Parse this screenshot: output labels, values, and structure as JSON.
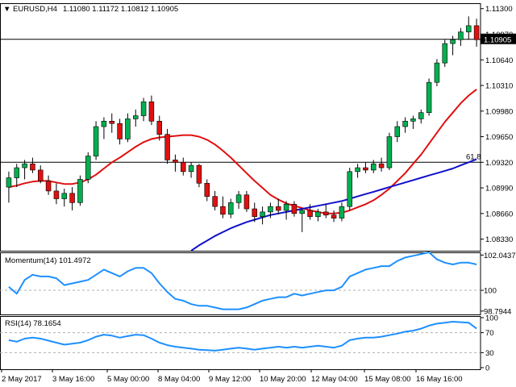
{
  "header": {
    "title": "EURUSD,H4",
    "ohlc": "1.11080 1.11172 1.10812 1.10905"
  },
  "colors": {
    "bull": "#00b050",
    "bear": "#e01010",
    "sma_fast": "#e01010",
    "sma_slow": "#1010cc",
    "momentum": "#1e90ff",
    "rsi": "#1e90ff",
    "grid": "#b0b0b0"
  },
  "chart_data": [
    {
      "type": "candlestick",
      "title": "EURUSD,H4",
      "y_ticks": [
        "1.11300",
        "1.10970",
        "1.10640",
        "1.10310",
        "1.09980",
        "1.09650",
        "1.09320",
        "1.08990",
        "1.08660",
        "1.08330"
      ],
      "ylim": [
        1.0818,
        1.1137
      ],
      "price_line": {
        "value": 1.10905,
        "label": "1.10905"
      },
      "fib_line": {
        "value": 1.0932,
        "label": "61.8"
      },
      "x_ticks": [
        "2 May 2017",
        "3 May 16:00",
        "5 May 00:00",
        "8 May 04:00",
        "9 May 12:00",
        "10 May 20:00",
        "12 May 04:00",
        "15 May 08:00",
        "16 May 16:00"
      ],
      "candles": [
        {
          "o": 1.09,
          "h": 1.092,
          "l": 1.088,
          "c": 1.0912
        },
        {
          "o": 1.0912,
          "h": 1.093,
          "l": 1.09,
          "c": 1.0925
        },
        {
          "o": 1.0925,
          "h": 1.0935,
          "l": 1.091,
          "c": 1.093
        },
        {
          "o": 1.093,
          "h": 1.0938,
          "l": 1.0918,
          "c": 1.0922
        },
        {
          "o": 1.0922,
          "h": 1.0928,
          "l": 1.0905,
          "c": 1.0908
        },
        {
          "o": 1.0908,
          "h": 1.0915,
          "l": 1.089,
          "c": 1.0895
        },
        {
          "o": 1.0895,
          "h": 1.0905,
          "l": 1.0878,
          "c": 1.0885
        },
        {
          "o": 1.0885,
          "h": 1.0898,
          "l": 1.0875,
          "c": 1.0892
        },
        {
          "o": 1.0892,
          "h": 1.09,
          "l": 1.087,
          "c": 1.088
        },
        {
          "o": 1.088,
          "h": 1.0915,
          "l": 1.0876,
          "c": 1.091
        },
        {
          "o": 1.091,
          "h": 1.0945,
          "l": 1.0905,
          "c": 1.094
        },
        {
          "o": 1.094,
          "h": 1.0985,
          "l": 1.0935,
          "c": 1.0978
        },
        {
          "o": 1.0978,
          "h": 1.099,
          "l": 1.0962,
          "c": 1.0985
        },
        {
          "o": 1.0985,
          "h": 1.0995,
          "l": 1.097,
          "c": 1.0982
        },
        {
          "o": 1.0982,
          "h": 1.0988,
          "l": 1.0955,
          "c": 1.0962
        },
        {
          "o": 1.0962,
          "h": 1.0995,
          "l": 1.0958,
          "c": 1.0988
        },
        {
          "o": 1.0988,
          "h": 1.1,
          "l": 1.0978,
          "c": 1.0992
        },
        {
          "o": 1.0992,
          "h": 1.1015,
          "l": 1.0985,
          "c": 1.101
        },
        {
          "o": 1.101,
          "h": 1.1018,
          "l": 1.098,
          "c": 1.0985
        },
        {
          "o": 1.0985,
          "h": 1.0992,
          "l": 1.096,
          "c": 1.0968
        },
        {
          "o": 1.0968,
          "h": 1.0975,
          "l": 1.093,
          "c": 1.0935
        },
        {
          "o": 1.0935,
          "h": 1.0942,
          "l": 1.092,
          "c": 1.0932
        },
        {
          "o": 1.0932,
          "h": 1.0938,
          "l": 1.0915,
          "c": 1.092
        },
        {
          "o": 1.092,
          "h": 1.0932,
          "l": 1.0912,
          "c": 1.0928
        },
        {
          "o": 1.0928,
          "h": 1.093,
          "l": 1.09,
          "c": 1.0905
        },
        {
          "o": 1.0905,
          "h": 1.091,
          "l": 1.0882,
          "c": 1.0888
        },
        {
          "o": 1.0888,
          "h": 1.0895,
          "l": 1.087,
          "c": 1.0875
        },
        {
          "o": 1.0875,
          "h": 1.0888,
          "l": 1.086,
          "c": 1.0865
        },
        {
          "o": 1.0865,
          "h": 1.0885,
          "l": 1.086,
          "c": 1.088
        },
        {
          "o": 1.088,
          "h": 1.0895,
          "l": 1.0872,
          "c": 1.089
        },
        {
          "o": 1.089,
          "h": 1.0895,
          "l": 1.0868,
          "c": 1.0872
        },
        {
          "o": 1.0872,
          "h": 1.088,
          "l": 1.0855,
          "c": 1.0862
        },
        {
          "o": 1.0862,
          "h": 1.0875,
          "l": 1.0852,
          "c": 1.0868
        },
        {
          "o": 1.0868,
          "h": 1.088,
          "l": 1.086,
          "c": 1.0875
        },
        {
          "o": 1.0875,
          "h": 1.0885,
          "l": 1.0865,
          "c": 1.087
        },
        {
          "o": 1.087,
          "h": 1.0882,
          "l": 1.0858,
          "c": 1.0878
        },
        {
          "o": 1.0878,
          "h": 1.0882,
          "l": 1.0862,
          "c": 1.0866
        },
        {
          "o": 1.0866,
          "h": 1.0872,
          "l": 1.0842,
          "c": 1.087
        },
        {
          "o": 1.087,
          "h": 1.0878,
          "l": 1.0858,
          "c": 1.0862
        },
        {
          "o": 1.0862,
          "h": 1.0872,
          "l": 1.0856,
          "c": 1.0868
        },
        {
          "o": 1.0868,
          "h": 1.0878,
          "l": 1.086,
          "c": 1.0864
        },
        {
          "o": 1.0864,
          "h": 1.087,
          "l": 1.0855,
          "c": 1.086
        },
        {
          "o": 1.086,
          "h": 1.088,
          "l": 1.0856,
          "c": 1.0875
        },
        {
          "o": 1.0875,
          "h": 1.0925,
          "l": 1.087,
          "c": 1.092
        },
        {
          "o": 1.092,
          "h": 1.093,
          "l": 1.0912,
          "c": 1.0925
        },
        {
          "o": 1.0925,
          "h": 1.0932,
          "l": 1.0918,
          "c": 1.0922
        },
        {
          "o": 1.0922,
          "h": 1.0935,
          "l": 1.0918,
          "c": 1.093
        },
        {
          "o": 1.093,
          "h": 1.0938,
          "l": 1.092,
          "c": 1.0925
        },
        {
          "o": 1.0925,
          "h": 1.097,
          "l": 1.0922,
          "c": 1.0965
        },
        {
          "o": 1.0965,
          "h": 1.0985,
          "l": 1.0958,
          "c": 1.0978
        },
        {
          "o": 1.0978,
          "h": 1.099,
          "l": 1.097,
          "c": 1.0985
        },
        {
          "o": 1.0985,
          "h": 1.0992,
          "l": 1.0975,
          "c": 1.0988
        },
        {
          "o": 1.0988,
          "h": 1.1,
          "l": 1.0982,
          "c": 1.0996
        },
        {
          "o": 1.0996,
          "h": 1.104,
          "l": 1.0992,
          "c": 1.1035
        },
        {
          "o": 1.1035,
          "h": 1.1065,
          "l": 1.103,
          "c": 1.106
        },
        {
          "o": 1.106,
          "h": 1.109,
          "l": 1.1055,
          "c": 1.1085
        },
        {
          "o": 1.1085,
          "h": 1.1095,
          "l": 1.107,
          "c": 1.109
        },
        {
          "o": 1.109,
          "h": 1.1105,
          "l": 1.1082,
          "c": 1.11
        },
        {
          "o": 1.11,
          "h": 1.112,
          "l": 1.109,
          "c": 1.1108
        },
        {
          "o": 1.1108,
          "h": 1.1117,
          "l": 1.1081,
          "c": 1.109
        }
      ],
      "sma_fast": [
        1.09,
        1.0902,
        1.0905,
        1.0907,
        1.0908,
        1.0908,
        1.0906,
        1.0904,
        1.0904,
        1.0906,
        1.091,
        1.0916,
        1.0924,
        1.0932,
        1.0938,
        1.0945,
        1.0952,
        1.0958,
        1.0962,
        1.0964,
        1.0965,
        1.0966,
        1.0967,
        1.0967,
        1.0965,
        1.0961,
        1.0955,
        1.0947,
        1.0938,
        1.0928,
        1.0918,
        1.0908,
        1.0899,
        1.089,
        1.0884,
        1.0879,
        1.0876,
        1.0873,
        1.087,
        1.0868,
        1.0866,
        1.0866,
        1.0867,
        1.087,
        1.0874,
        1.0878,
        1.0883,
        1.089,
        1.0898,
        1.0908,
        1.0918,
        1.093,
        1.0942,
        1.0956,
        1.097,
        1.0984,
        1.0996,
        1.1008,
        1.1018,
        1.1026
      ],
      "sma_slow": [
        null,
        null,
        null,
        null,
        null,
        null,
        null,
        null,
        null,
        null,
        null,
        null,
        null,
        null,
        null,
        null,
        null,
        null,
        null,
        null,
        null,
        null,
        null,
        1.0818,
        1.0825,
        1.0831,
        1.0837,
        1.0842,
        1.0847,
        1.0851,
        1.0855,
        1.0858,
        1.0861,
        1.0864,
        1.0866,
        1.0868,
        1.087,
        1.0872,
        1.0874,
        1.0876,
        1.0878,
        1.088,
        1.0882,
        1.0885,
        1.0888,
        1.0891,
        1.0894,
        1.0897,
        1.09,
        1.0903,
        1.0906,
        1.0909,
        1.0912,
        1.0915,
        1.0918,
        1.0921,
        1.0924,
        1.0928,
        1.0932,
        1.0936
      ]
    },
    {
      "type": "line",
      "title": "Momentum(14) 101.4972",
      "y_ticks": [
        "102.0437",
        "100",
        "98.7944"
      ],
      "ylim": [
        98.6,
        102.2
      ],
      "reference": 100,
      "values": [
        100.2,
        99.8,
        100.6,
        100.9,
        100.8,
        100.8,
        100.7,
        100.3,
        100.4,
        100.5,
        100.6,
        100.9,
        101.2,
        101.0,
        100.8,
        101.1,
        101.3,
        101.3,
        101.0,
        100.4,
        99.9,
        99.5,
        99.4,
        99.2,
        99.1,
        99.1,
        99.0,
        98.9,
        98.9,
        98.9,
        99.0,
        99.2,
        99.4,
        99.5,
        99.6,
        99.6,
        99.8,
        99.7,
        99.8,
        99.9,
        100.0,
        100.0,
        100.2,
        100.8,
        101.0,
        101.2,
        101.3,
        101.4,
        101.4,
        101.7,
        101.9,
        102.0,
        102.1,
        102.2,
        101.8,
        101.6,
        101.5,
        101.6,
        101.6,
        101.5
      ]
    },
    {
      "type": "line",
      "title": "RSI(14) 78.1654",
      "y_ticks": [
        "100",
        "70",
        "30",
        "0"
      ],
      "ylim": [
        0,
        100
      ],
      "levels": [
        70,
        30
      ],
      "values": [
        55,
        52,
        58,
        60,
        58,
        54,
        50,
        46,
        48,
        50,
        55,
        62,
        66,
        64,
        60,
        63,
        66,
        65,
        58,
        50,
        45,
        42,
        40,
        38,
        36,
        35,
        34,
        36,
        38,
        40,
        38,
        36,
        38,
        40,
        42,
        40,
        42,
        40,
        42,
        44,
        42,
        40,
        44,
        55,
        58,
        60,
        60,
        62,
        65,
        68,
        72,
        74,
        78,
        84,
        88,
        90,
        92,
        91,
        90,
        78
      ]
    }
  ]
}
